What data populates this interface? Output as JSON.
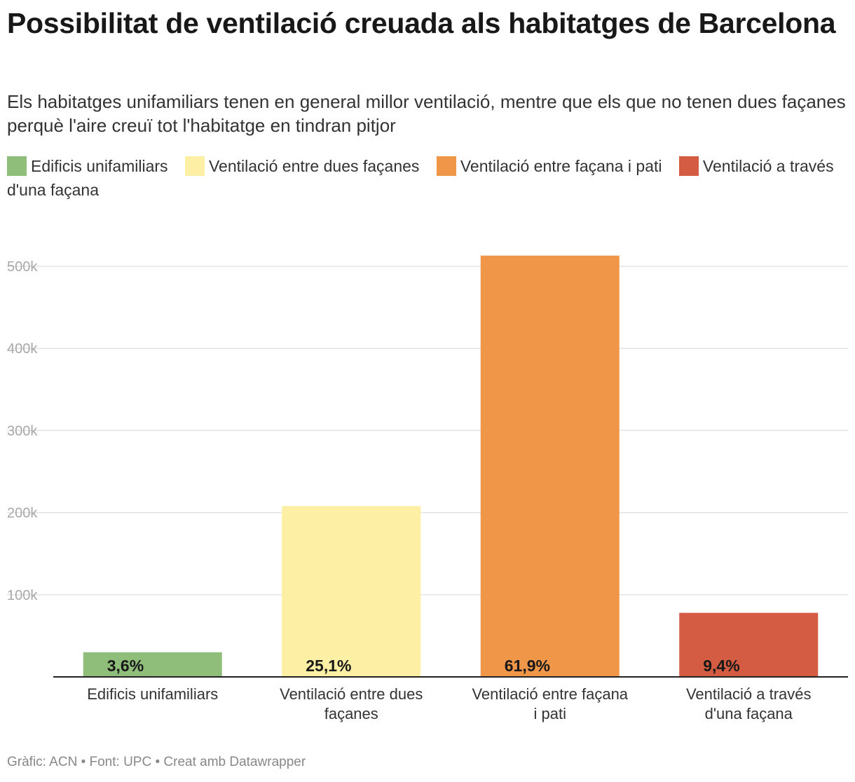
{
  "header": {
    "title": "Possibilitat de ventilació creuada als habitatges de Barcelona",
    "subtitle": "Els habitatges unifamiliars tenen en general millor ventilació, mentre que els que no tenen dues façanes perquè l'aire creuï tot l'habitatge en tindran pitjor"
  },
  "legend": [
    {
      "label": "Edificis unifamiliars",
      "color": "#8fbe7a"
    },
    {
      "label": "Ventilació entre dues façanes",
      "color": "#fdf0a4"
    },
    {
      "label": "Ventilació entre façana i pati",
      "color": "#f09648"
    },
    {
      "label": "Ventilació a través d'una façana",
      "color": "#d45c42"
    }
  ],
  "chart_data": {
    "type": "bar",
    "categories": [
      "Edificis unifamiliars",
      "Ventilació entre dues façanes",
      "Ventilació entre façana i pati",
      "Ventilació a través d'una façana"
    ],
    "category_lines": [
      [
        "Edificis unifamiliars"
      ],
      [
        "Ventilació entre dues",
        "façanes"
      ],
      [
        "Ventilació entre façana",
        "i pati"
      ],
      [
        "Ventilació a través",
        "d'una façana"
      ]
    ],
    "values": [
      30000,
      208000,
      513000,
      78000
    ],
    "data_labels": [
      "3,6%",
      "25,1%",
      "61,9%",
      "9,4%"
    ],
    "colors": [
      "#8fbe7a",
      "#fdf0a4",
      "#f09648",
      "#d45c42"
    ],
    "ylim": [
      0,
      540000
    ],
    "yticks": [
      100000,
      200000,
      300000,
      400000,
      500000
    ],
    "ytick_labels": [
      "100k",
      "200k",
      "300k",
      "400k",
      "500k"
    ],
    "grid": true,
    "legend_position": "top"
  },
  "footer": "Gràfic: ACN • Font: UPC • Creat amb Datawrapper"
}
